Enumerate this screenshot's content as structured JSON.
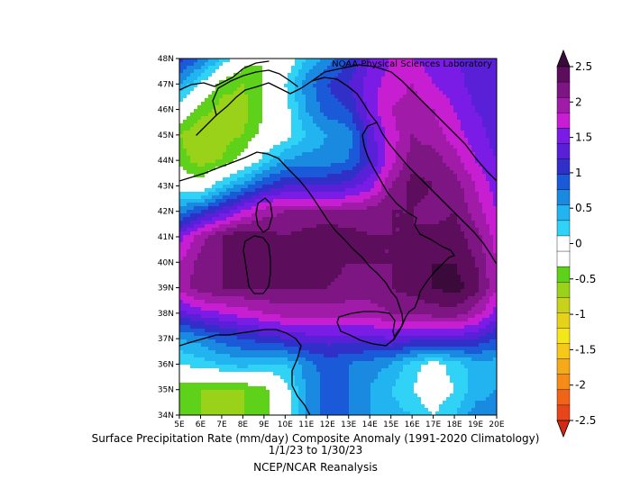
{
  "credit": "NOAA Physical Sciences Laboratory",
  "title": "Surface Precipitation Rate (mm/day) Composite Anomaly (1991-2020 Climatology)",
  "date_range": "1/1/23  to 1/30/23",
  "source": "NCEP/NCAR Reanalysis",
  "lat_labels": [
    "48N",
    "47N",
    "46N",
    "45N",
    "44N",
    "43N",
    "42N",
    "41N",
    "40N",
    "39N",
    "38N",
    "37N",
    "36N",
    "35N",
    "34N"
  ],
  "lon_labels": [
    "5E",
    "6E",
    "7E",
    "8E",
    "9E",
    "10E",
    "11E",
    "12E",
    "13E",
    "14E",
    "15E",
    "16E",
    "17E",
    "18E",
    "19E",
    "20E"
  ],
  "colorbar": {
    "labels": [
      "2.5",
      "2",
      "1.5",
      "1",
      "0.5",
      "0",
      "-0.5",
      "-1",
      "-1.5",
      "-2",
      "-2.5"
    ],
    "colors": [
      "#3a0a3a",
      "#5c0e5c",
      "#7d1582",
      "#a01ca8",
      "#c81ed2",
      "#7a1ce6",
      "#5a20d8",
      "#3030c8",
      "#1a5ad8",
      "#1a8ae0",
      "#22b4f0",
      "#30d2f5",
      "#ffffff",
      "#ffffff",
      "#5ed21a",
      "#9ad21a",
      "#c8d21a",
      "#e6d21a",
      "#f5e61a",
      "#f5c81a",
      "#f5aa1a",
      "#f58c1a",
      "#f0641a",
      "#e6461a",
      "#d22814"
    ]
  },
  "field": {
    "lats": [
      48,
      47,
      46,
      45,
      44,
      43,
      42,
      41,
      40,
      39,
      38,
      37,
      36,
      35,
      34
    ],
    "lons": [
      5,
      6,
      7,
      8,
      9,
      10,
      11,
      12,
      13,
      14,
      15,
      16,
      17,
      18,
      19,
      20
    ],
    "values": [
      [
        1.0,
        0.7,
        0.3,
        -0.2,
        -0.3,
        -0.1,
        0.3,
        0.6,
        0.9,
        1.3,
        1.5,
        1.5,
        1.4,
        1.3,
        1.2,
        1.1
      ],
      [
        0.5,
        0.1,
        -0.4,
        -0.5,
        -0.3,
        0.1,
        0.6,
        0.9,
        1.1,
        1.4,
        1.6,
        1.7,
        1.5,
        1.4,
        1.2,
        1.1
      ],
      [
        0.0,
        -0.4,
        -0.6,
        -0.6,
        -0.3,
        0.0,
        0.5,
        0.8,
        0.9,
        1.4,
        1.7,
        1.8,
        1.7,
        1.5,
        1.3,
        1.2
      ],
      [
        -0.5,
        -0.7,
        -0.6,
        -0.5,
        -0.2,
        0.0,
        0.3,
        0.5,
        0.6,
        1.2,
        1.6,
        1.9,
        1.8,
        1.6,
        1.4,
        1.2
      ],
      [
        -0.4,
        -0.6,
        -0.5,
        -0.2,
        0.2,
        0.5,
        0.6,
        0.6,
        0.7,
        1.1,
        1.6,
        2.0,
        2.0,
        1.8,
        1.5,
        1.3
      ],
      [
        0.0,
        -0.2,
        0.3,
        0.6,
        0.9,
        1.1,
        1.1,
        1.1,
        1.2,
        1.4,
        1.9,
        2.2,
        2.1,
        2.0,
        1.7,
        1.4
      ],
      [
        0.6,
        0.9,
        1.2,
        1.5,
        1.8,
        1.9,
        1.9,
        1.9,
        1.9,
        2.0,
        2.1,
        2.1,
        2.0,
        2.1,
        1.8,
        1.5
      ],
      [
        1.4,
        1.8,
        2.1,
        2.3,
        2.2,
        2.1,
        2.2,
        2.3,
        2.2,
        2.1,
        2.1,
        2.1,
        2.2,
        2.2,
        2.0,
        1.6
      ],
      [
        1.7,
        2.0,
        2.1,
        2.2,
        2.2,
        2.2,
        2.3,
        2.2,
        2.1,
        2.1,
        2.1,
        2.2,
        2.3,
        2.3,
        2.1,
        1.7
      ],
      [
        1.8,
        2.0,
        2.1,
        2.1,
        2.1,
        2.1,
        2.1,
        2.1,
        2.0,
        2.0,
        2.1,
        2.2,
        2.3,
        2.4,
        2.2,
        1.7
      ],
      [
        1.2,
        1.4,
        1.5,
        1.6,
        1.7,
        1.8,
        1.8,
        1.8,
        1.8,
        1.8,
        1.9,
        1.9,
        2.0,
        2.0,
        1.8,
        1.4
      ],
      [
        0.5,
        0.6,
        0.8,
        0.9,
        1.0,
        1.1,
        1.2,
        1.2,
        1.2,
        1.2,
        1.3,
        1.2,
        1.2,
        1.2,
        1.1,
        0.9
      ],
      [
        0.1,
        0.2,
        0.3,
        0.4,
        0.3,
        0.3,
        0.6,
        0.8,
        0.7,
        0.6,
        0.5,
        0.2,
        0.0,
        0.2,
        0.4,
        0.4
      ],
      [
        -0.4,
        -0.5,
        -0.5,
        -0.5,
        -0.4,
        0.0,
        0.5,
        0.8,
        0.7,
        0.5,
        0.3,
        0.1,
        -0.1,
        0.1,
        0.4,
        0.5
      ],
      [
        -0.5,
        -0.5,
        -0.5,
        -0.5,
        -0.4,
        0.0,
        0.5,
        0.8,
        0.7,
        0.5,
        0.4,
        0.3,
        0.1,
        0.3,
        0.6,
        0.6
      ]
    ]
  }
}
